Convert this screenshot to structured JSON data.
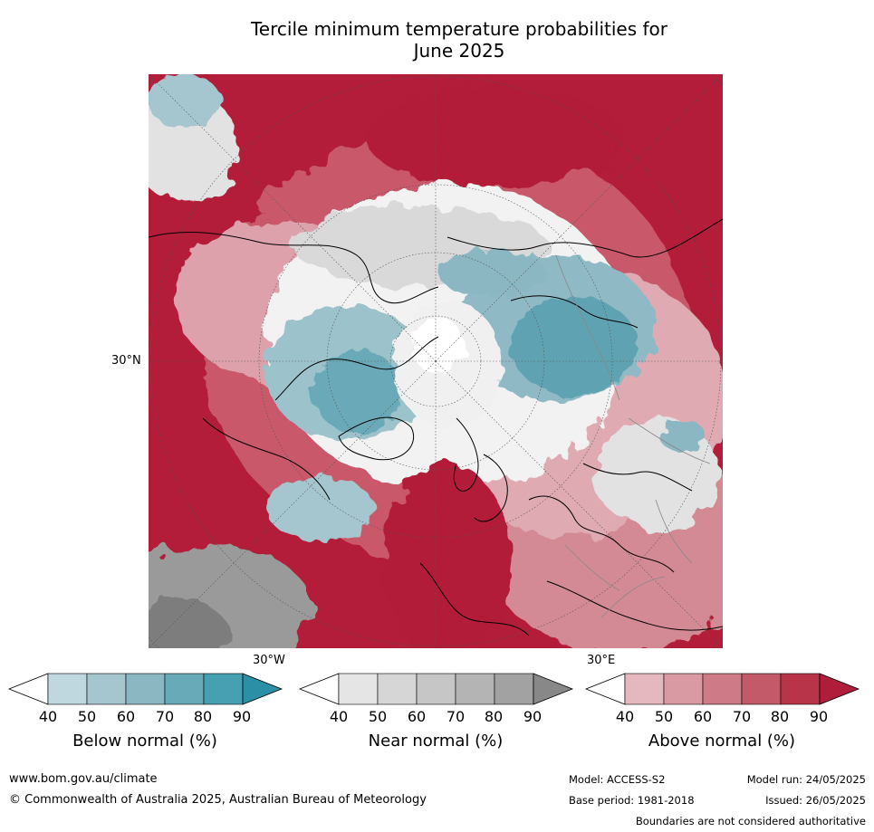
{
  "title_line1": "Tercile minimum temperature probabilities for",
  "title_line2": "June 2025",
  "map": {
    "lat_labels": [
      "30°N"
    ],
    "lon_labels": [
      "30°W",
      "30°E"
    ]
  },
  "colorbars": [
    {
      "label": "Below normal (%)",
      "ticks": [
        "40",
        "50",
        "60",
        "70",
        "80",
        "90"
      ],
      "colors": [
        "#ffffff",
        "#bfd7de",
        "#a5c6ce",
        "#8bb7c3",
        "#69aab8",
        "#47a0b2",
        "#2b8fa5"
      ]
    },
    {
      "label": "Near normal (%)",
      "ticks": [
        "40",
        "50",
        "60",
        "70",
        "80",
        "90"
      ],
      "colors": [
        "#ffffff",
        "#e5e5e5",
        "#d6d6d6",
        "#c6c6c6",
        "#b4b4b4",
        "#a2a2a2",
        "#888888"
      ]
    },
    {
      "label": "Above normal (%)",
      "ticks": [
        "40",
        "50",
        "60",
        "70",
        "80",
        "90"
      ],
      "colors": [
        "#ffffff",
        "#e5b8bf",
        "#d99aa4",
        "#ce7b87",
        "#c35a6a",
        "#b83549",
        "#b01d3a"
      ]
    }
  ],
  "footer": {
    "url": "www.bom.gov.au/climate",
    "copyright": "© Commonwealth of Australia 2025, Australian Bureau of Meteorology",
    "model": "Model: ACCESS-S2",
    "model_run": "Model run: 24/05/2025",
    "base_period": "Base period: 1981-2018",
    "issued": "Issued: 26/05/2025",
    "disclaimer": "Boundaries are not considered authoritative"
  }
}
